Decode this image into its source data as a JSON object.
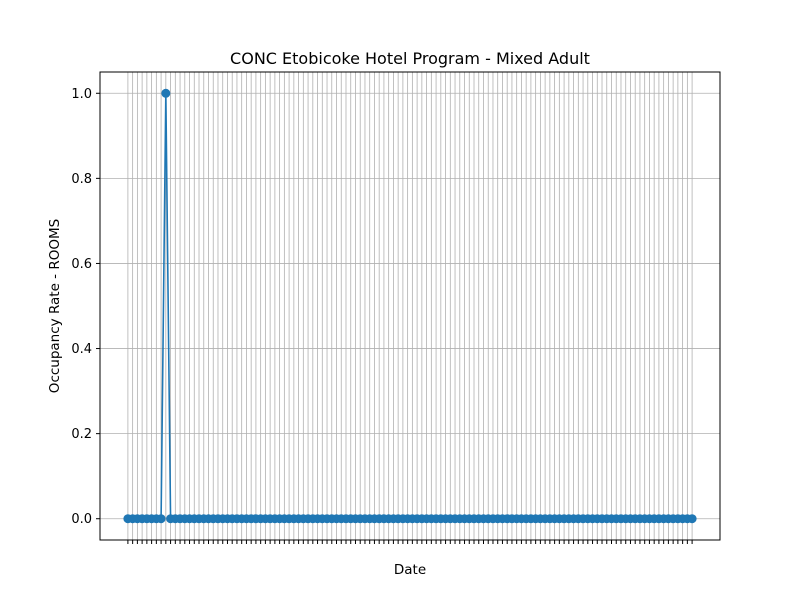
{
  "chart_data": {
    "type": "line",
    "title": "CONC Etobicoke Hotel Program - Mixed Adult",
    "xlabel": "Date",
    "ylabel": "Occupancy Rate - ROOMS",
    "ylim": [
      -0.05,
      1.05
    ],
    "yticks": [
      0.0,
      0.2,
      0.4,
      0.6,
      0.8,
      1.0
    ],
    "ytick_labels": [
      "0.0",
      "0.2",
      "0.4",
      "0.6",
      "0.8",
      "1.0"
    ],
    "x_count": 120,
    "x_tick_labels": [
      "",
      ""
    ],
    "grid": true,
    "marker": "circle",
    "series": [
      {
        "name": "",
        "color": "#1f77b4",
        "y": [
          0,
          0,
          0,
          0,
          0,
          0,
          0,
          0,
          1,
          0,
          0,
          0,
          0,
          0,
          0,
          0,
          0,
          0,
          0,
          0,
          0,
          0,
          0,
          0,
          0,
          0,
          0,
          0,
          0,
          0,
          0,
          0,
          0,
          0,
          0,
          0,
          0,
          0,
          0,
          0,
          0,
          0,
          0,
          0,
          0,
          0,
          0,
          0,
          0,
          0,
          0,
          0,
          0,
          0,
          0,
          0,
          0,
          0,
          0,
          0,
          0,
          0,
          0,
          0,
          0,
          0,
          0,
          0,
          0,
          0,
          0,
          0,
          0,
          0,
          0,
          0,
          0,
          0,
          0,
          0,
          0,
          0,
          0,
          0,
          0,
          0,
          0,
          0,
          0,
          0,
          0,
          0,
          0,
          0,
          0,
          0,
          0,
          0,
          0,
          0,
          0,
          0,
          0,
          0,
          0,
          0,
          0,
          0,
          0,
          0,
          0,
          0,
          0,
          0,
          0,
          0,
          0,
          0,
          0,
          0
        ]
      }
    ]
  }
}
